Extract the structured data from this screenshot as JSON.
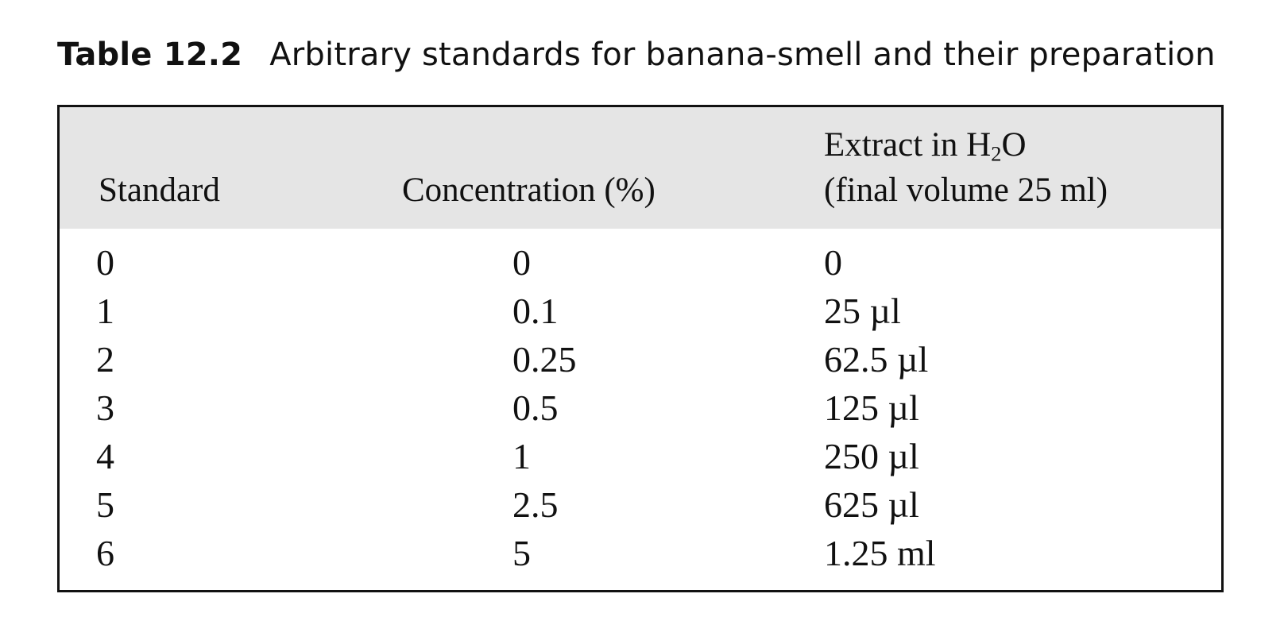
{
  "caption": {
    "label": "Table 12.2",
    "title": "Arbitrary standards for banana-smell and their preparation"
  },
  "table": {
    "headers": {
      "standard": "Standard",
      "concentration": "Concentration (%)",
      "extract_line1_prefix": "Extract in H",
      "extract_line1_sub": "2",
      "extract_line1_suffix": "O",
      "extract_line2": "(final volume 25 ml)"
    },
    "rows": [
      {
        "standard": "0",
        "concentration": "0",
        "extract": "0"
      },
      {
        "standard": "1",
        "concentration": "0.1",
        "extract": "25 µl"
      },
      {
        "standard": "2",
        "concentration": "0.25",
        "extract": "62.5 µl"
      },
      {
        "standard": "3",
        "concentration": "0.5",
        "extract": "125 µl"
      },
      {
        "standard": "4",
        "concentration": "1",
        "extract": "250 µl"
      },
      {
        "standard": "5",
        "concentration": "2.5",
        "extract": "625 µl"
      },
      {
        "standard": "6",
        "concentration": "5",
        "extract": "1.25 ml"
      }
    ]
  }
}
